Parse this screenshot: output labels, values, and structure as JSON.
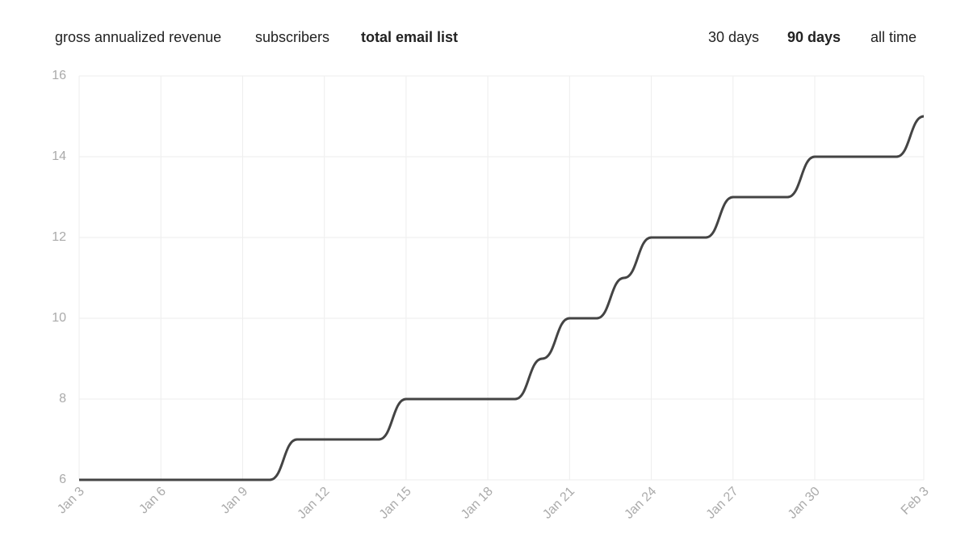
{
  "metric_tabs": {
    "items": [
      "gross annualized revenue",
      "subscribers",
      "total email list"
    ],
    "active": 2
  },
  "range_tabs": {
    "items": [
      "30 days",
      "90 days",
      "all time"
    ],
    "active": 1
  },
  "chart_data": {
    "type": "line",
    "categories": [
      "Jan 3",
      null,
      null,
      "Jan 6",
      null,
      null,
      "Jan 9",
      null,
      null,
      "Jan 12",
      null,
      null,
      "Jan 15",
      null,
      null,
      "Jan 18",
      null,
      null,
      "Jan 21",
      null,
      null,
      "Jan 24",
      null,
      null,
      "Jan 27",
      null,
      null,
      "Jan 30",
      null,
      null,
      null,
      "Feb 3"
    ],
    "series": [
      {
        "color": "#444444",
        "values": [
          6,
          6,
          6,
          6,
          6,
          6,
          6,
          6,
          7,
          7,
          7,
          7,
          8,
          8,
          8,
          8,
          8,
          9,
          10,
          10,
          11,
          12,
          12,
          12,
          13,
          13,
          13,
          14,
          14,
          14,
          14,
          15
        ]
      }
    ],
    "ylim": [
      6,
      16
    ],
    "yticks": [
      6,
      8,
      10,
      12,
      14,
      16
    ],
    "grid": true
  }
}
